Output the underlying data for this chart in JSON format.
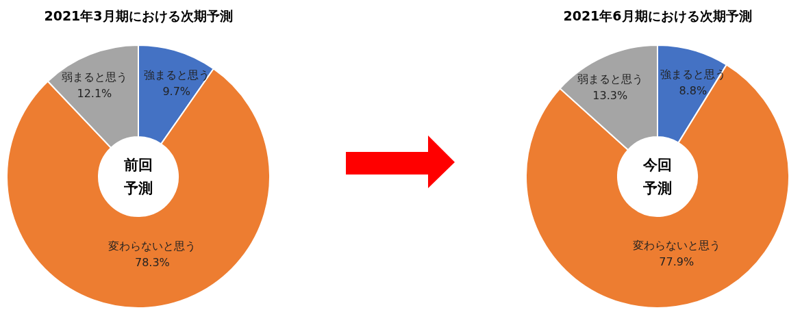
{
  "chart_data": [
    {
      "type": "donut",
      "title": "2021年3月期における次期予測",
      "categories": [
        "強まると思う",
        "変わらないと思う",
        "弱まると思う"
      ],
      "values": [
        9.7,
        78.3,
        12.1
      ],
      "colors": [
        "#4472c4",
        "#ed7d31",
        "#a5a5a5"
      ],
      "value_labels": [
        "9.7%",
        "78.3%",
        "12.1%"
      ],
      "annotations": [
        "前回",
        "予測"
      ]
    },
    {
      "type": "donut",
      "title": "2021年6月期における次期予測",
      "categories": [
        "強まると思う",
        "変わらないと思う",
        "弱まると思う"
      ],
      "values": [
        8.8,
        77.9,
        13.3
      ],
      "colors": [
        "#4472c4",
        "#ed7d31",
        "#a5a5a5"
      ],
      "value_labels": [
        "8.8%",
        "77.9%",
        "13.3%"
      ],
      "annotations": [
        "今回",
        "予測"
      ]
    }
  ]
}
